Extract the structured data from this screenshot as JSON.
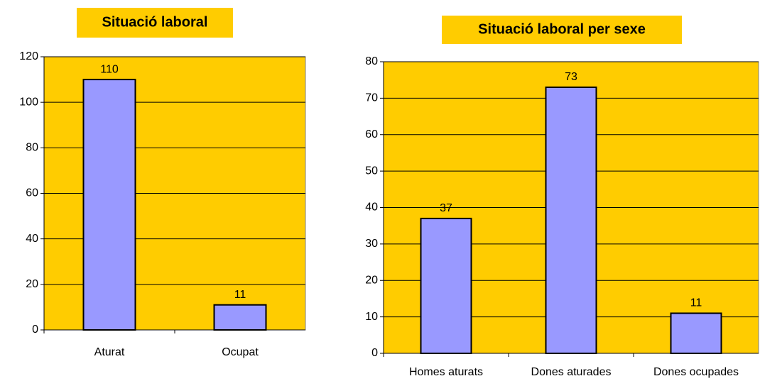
{
  "chart_data": [
    {
      "type": "bar",
      "title": "Situació laboral",
      "categories": [
        "Aturat",
        "Ocupat"
      ],
      "values": [
        110,
        11
      ],
      "color": "#9999ff",
      "background": "#ffcc00",
      "ylim": [
        0,
        120
      ],
      "yticks": [
        0,
        20,
        40,
        60,
        80,
        100,
        120
      ],
      "grid": true
    },
    {
      "type": "bar",
      "title": "Situació laboral per sexe",
      "categories": [
        "Homes aturats",
        "Dones aturades",
        "Dones ocupades"
      ],
      "values": [
        37,
        73,
        11
      ],
      "color": "#9999ff",
      "background": "#ffcc00",
      "ylim": [
        0,
        80
      ],
      "yticks": [
        0,
        10,
        20,
        30,
        40,
        50,
        60,
        70,
        80
      ],
      "grid": true
    }
  ]
}
